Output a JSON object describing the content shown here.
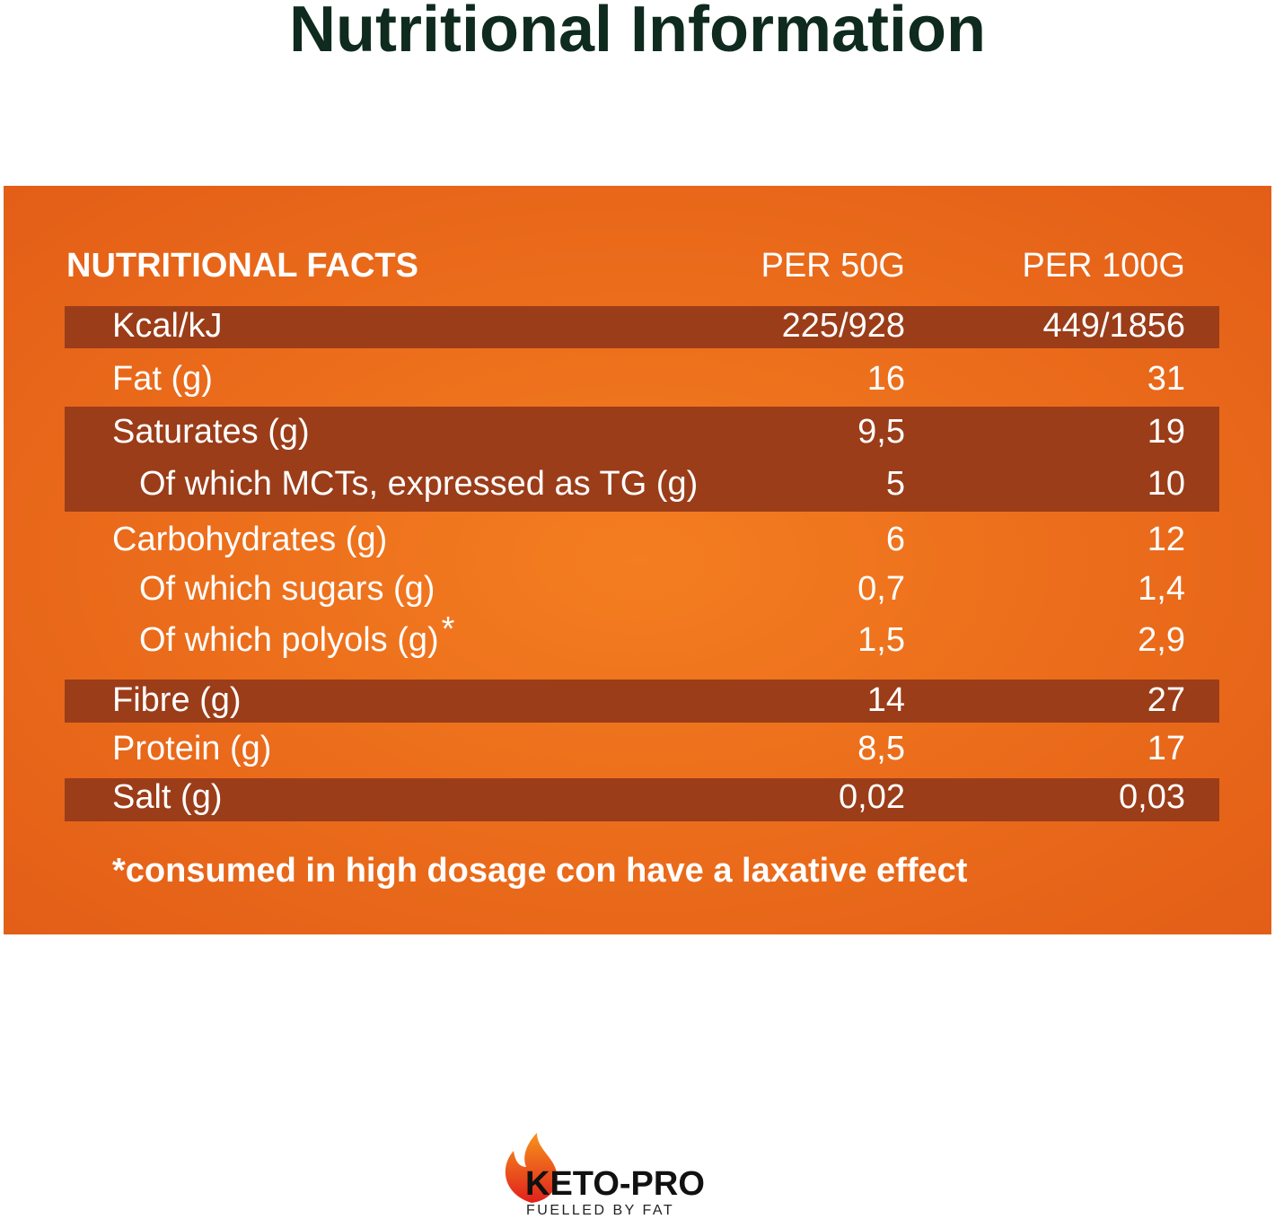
{
  "header": {
    "title": "Nutritional Information"
  },
  "table": {
    "columns": [
      "NUTRITIONAL FACTS",
      "PER 50G",
      "PER 100G"
    ],
    "rows": [
      [
        "Kcal/kJ",
        "225/928",
        "449/1856"
      ],
      [
        "Fat (g)",
        "16",
        "31"
      ],
      [
        "Saturates (g)",
        "9,5",
        "19"
      ],
      [
        "Of which MCTs, expressed as TG (g)",
        "5",
        "10"
      ],
      [
        "Carbohydrates (g)",
        "6",
        "12"
      ],
      [
        "Of which sugars (g)",
        "0,7",
        "1,4"
      ],
      [
        "Of which polyols (g)",
        "1,5",
        "2,9"
      ],
      [
        "Fibre (g)",
        "14",
        "27"
      ],
      [
        "Protein (g)",
        "8,5",
        "17"
      ],
      [
        "Salt (g)",
        "0,02",
        "0,03"
      ]
    ],
    "footnote_mark": "*",
    "footnote": "*consumed in high dosage con have a laxative effect"
  },
  "logo": {
    "name": "KETO-PRO",
    "tagline": "FUELLED BY FAT"
  }
}
